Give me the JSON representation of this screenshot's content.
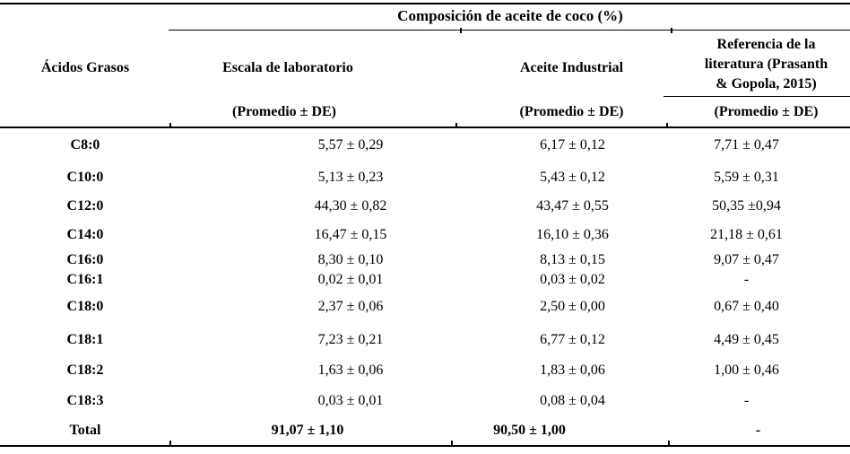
{
  "table": {
    "title": "Composición de aceite de coco (%)",
    "col1_header": "Ácidos Grasos",
    "columns": [
      {
        "name": "Escala de laboratorio",
        "subtitle": "(Promedio ± DE)"
      },
      {
        "name": "Aceite Industrial",
        "subtitle": "(Promedio ± DE)"
      },
      {
        "name": "Referencia de la literatura (Prasanth & Gopola, 2015)",
        "name_lines": [
          "Referencia de la",
          "literatura (Prasanth",
          "& Gopola, 2015)"
        ],
        "subtitle": "(Promedio ± DE)"
      }
    ],
    "rows": [
      {
        "label": "C8:0",
        "lab": "5,57 ± 0,29",
        "industrial": "6,17 ± 0,12",
        "referencia": "7,71 ± 0,47"
      },
      {
        "label": "C10:0",
        "lab": "5,13 ± 0,23",
        "industrial": "5,43 ± 0,12",
        "referencia": "5,59 ± 0,31"
      },
      {
        "label": "C12:0",
        "lab": "44,30 ± 0,82",
        "industrial": "43,47 ± 0,55",
        "referencia": "50,35 ±0,94"
      },
      {
        "label": "C14:0",
        "lab": "16,47 ± 0,15",
        "industrial": "16,10 ± 0,36",
        "referencia": "21,18 ± 0,61"
      },
      {
        "label": "C16:0",
        "lab": "8,30 ± 0,10",
        "industrial": "8,13 ± 0,15",
        "referencia": "9,07 ± 0,47"
      },
      {
        "label": "C16:1",
        "lab": "0,02 ± 0,01",
        "industrial": "0,03 ± 0,02",
        "referencia": "-"
      },
      {
        "label": "C18:0",
        "lab": "2,37 ± 0,06",
        "industrial": "2,50 ± 0,00",
        "referencia": "0,67 ± 0,40"
      },
      {
        "label": "C18:1",
        "lab": "7,23 ± 0,21",
        "industrial": "6,77 ± 0,12",
        "referencia": "4,49 ± 0,45"
      },
      {
        "label": "C18:2",
        "lab": "1,63 ± 0,06",
        "industrial": "1,83 ± 0,06",
        "referencia": "1,00 ± 0,46"
      },
      {
        "label": "C18:3",
        "lab": "0,03 ± 0,01",
        "industrial": "0,08 ± 0,04",
        "referencia": "-"
      },
      {
        "label": "Total",
        "lab": "91,07 ± 1,10",
        "industrial": "90,50 ± 1,00",
        "referencia": "-",
        "bold": true
      }
    ],
    "colors": {
      "text": "#000000",
      "background": "#ffffff",
      "rule": "#000000"
    }
  }
}
